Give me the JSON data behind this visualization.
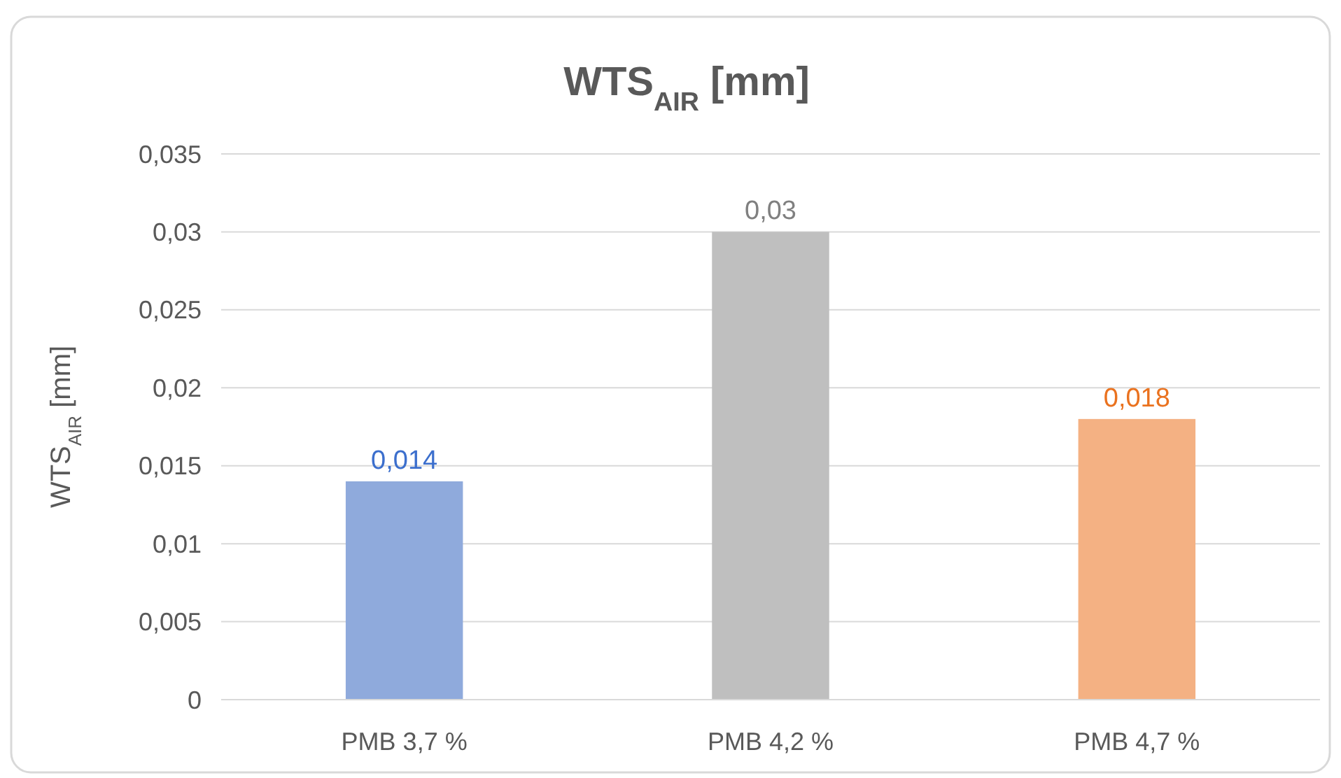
{
  "chart_data": {
    "type": "bar",
    "title": "WTS$_{AIR}$ [mm]",
    "ylabel": "WTS$_{AIR}$ [mm]",
    "categories": [
      "PMB 3,7 %",
      "PMB 4,2 %",
      "PMB 4,7 %"
    ],
    "values": [
      0.014,
      0.03,
      0.018
    ],
    "colors": [
      "#8faadc",
      "#bfbfbf",
      "#f4b183"
    ],
    "value_labels": [
      "0,014",
      "0,03",
      "0,018"
    ],
    "ylim": [
      0,
      0.035
    ],
    "yticks": [
      0,
      {
        "value": 0.005,
        "label": "0,005"
      },
      {
        "value": 0.01,
        "label": "0,01"
      },
      {
        "value": 0.015,
        "label": "0,015"
      },
      {
        "value": 0.02,
        "label": "0,02"
      },
      {
        "value": 0.025,
        "label": "0,025"
      },
      {
        "value": 0.03,
        "label": "0,03"
      },
      {
        "value": 0.035,
        "label": "0,035"
      }
    ],
    "grid": "y"
  }
}
